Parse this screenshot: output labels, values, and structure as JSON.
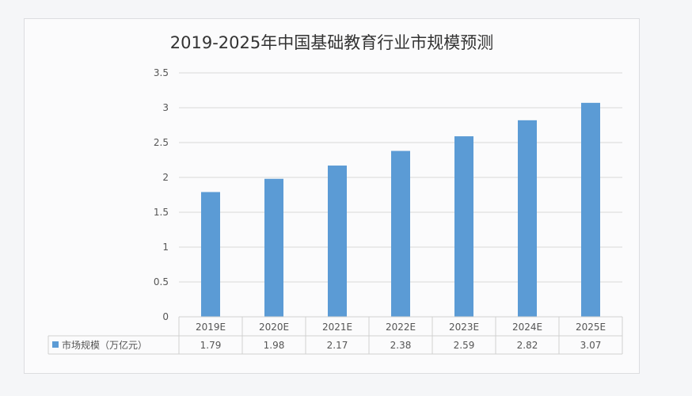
{
  "chart_data": {
    "type": "bar",
    "title": "2019-2025年中国基础教育行业市规模预测",
    "categories": [
      "2019E",
      "2020E",
      "2021E",
      "2022E",
      "2023E",
      "2024E",
      "2025E"
    ],
    "series": [
      {
        "name": "市场规模（万亿元）",
        "values": [
          1.79,
          1.98,
          2.17,
          2.38,
          2.59,
          2.82,
          3.07
        ],
        "color": "#5b9bd5"
      }
    ],
    "yticks": [
      "0",
      "0.5",
      "1",
      "1.5",
      "2",
      "2.5",
      "3",
      "3.5"
    ],
    "ylim": [
      0,
      3.5
    ],
    "grid": true,
    "legend": "data-table"
  }
}
